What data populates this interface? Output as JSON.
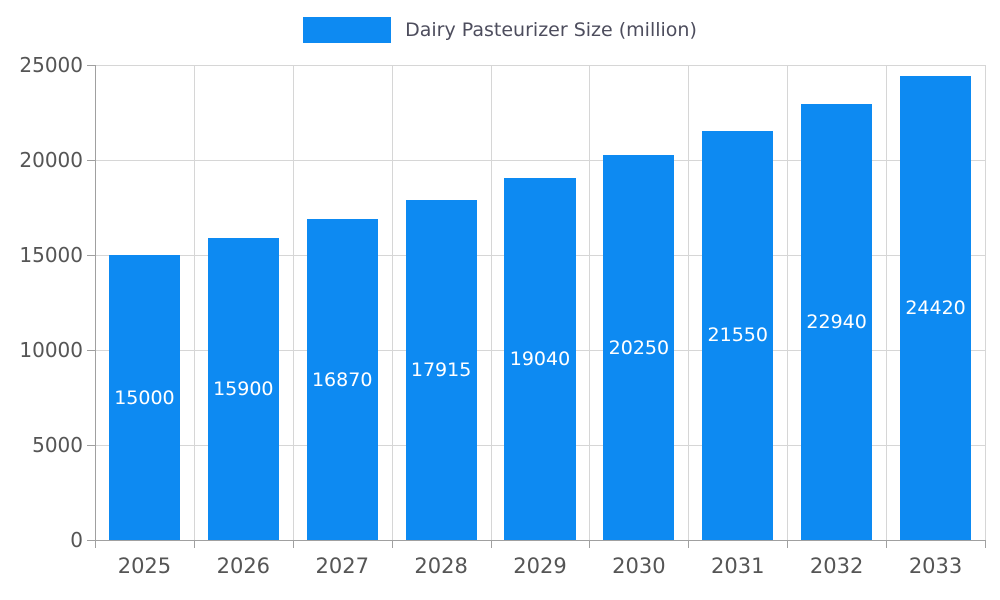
{
  "chart_data": {
    "type": "bar",
    "title": "Dairy Pasteurizer Size (million)",
    "categories": [
      "2025",
      "2026",
      "2027",
      "2028",
      "2029",
      "2030",
      "2031",
      "2032",
      "2033"
    ],
    "values": [
      15000,
      15900,
      16870,
      17915,
      19040,
      20250,
      21550,
      22940,
      24420
    ],
    "xlabel": "",
    "ylabel": "",
    "ylim": [
      0,
      25000
    ],
    "yticks": [
      0,
      5000,
      10000,
      15000,
      20000,
      25000
    ],
    "grid": true,
    "legend_position": "top",
    "bar_width_fraction": 0.72,
    "bar_color": "#0d8af2",
    "value_label_color": "#ffffff",
    "axis_text_color": "#555555",
    "legend_text_color": "#4d4d5d",
    "grid_color": "#d6d6d6",
    "axis_line_color": "#a0a0a0",
    "background_color": "#ffffff"
  }
}
